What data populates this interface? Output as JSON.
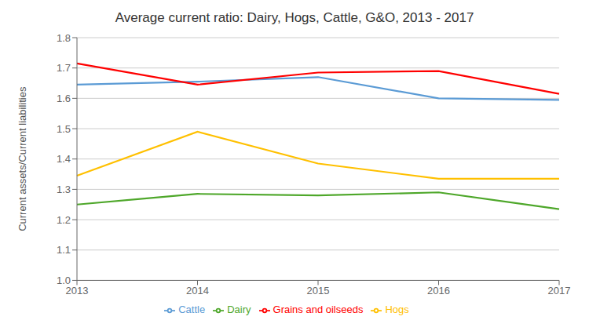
{
  "chart_data": {
    "type": "line",
    "title": "Average current ratio: Dairy, Hogs, Cattle, G&O, 2013 - 2017",
    "y_label": "Current  assets/Current liabilities",
    "categories": [
      "2013",
      "2014",
      "2015",
      "2016",
      "2017"
    ],
    "series": [
      {
        "name": "Dairy",
        "color": "#4EA72A",
        "values": [
          1.25,
          1.285,
          1.28,
          1.29,
          1.235
        ]
      },
      {
        "name": "Hogs",
        "color": "#FFC000",
        "values": [
          1.345,
          1.49,
          1.385,
          1.335,
          1.335
        ]
      },
      {
        "name": "Cattle",
        "color": "#5B9BD5",
        "values": [
          1.645,
          1.655,
          1.67,
          1.6,
          1.595
        ]
      },
      {
        "name": "Grains and oilseeds",
        "color": "#FF0000",
        "values": [
          1.715,
          1.645,
          1.685,
          1.69,
          1.615
        ]
      }
    ],
    "ylim": [
      1.0,
      1.8
    ],
    "yticks": [
      {
        "value": 1.0,
        "label": "1.0"
      },
      1.1,
      1.2,
      1.3,
      1.4,
      1.5,
      1.6,
      1.7,
      {
        "value": 1.8,
        "label": "1.8"
      }
    ],
    "grid": true,
    "legend": "bottom"
  }
}
